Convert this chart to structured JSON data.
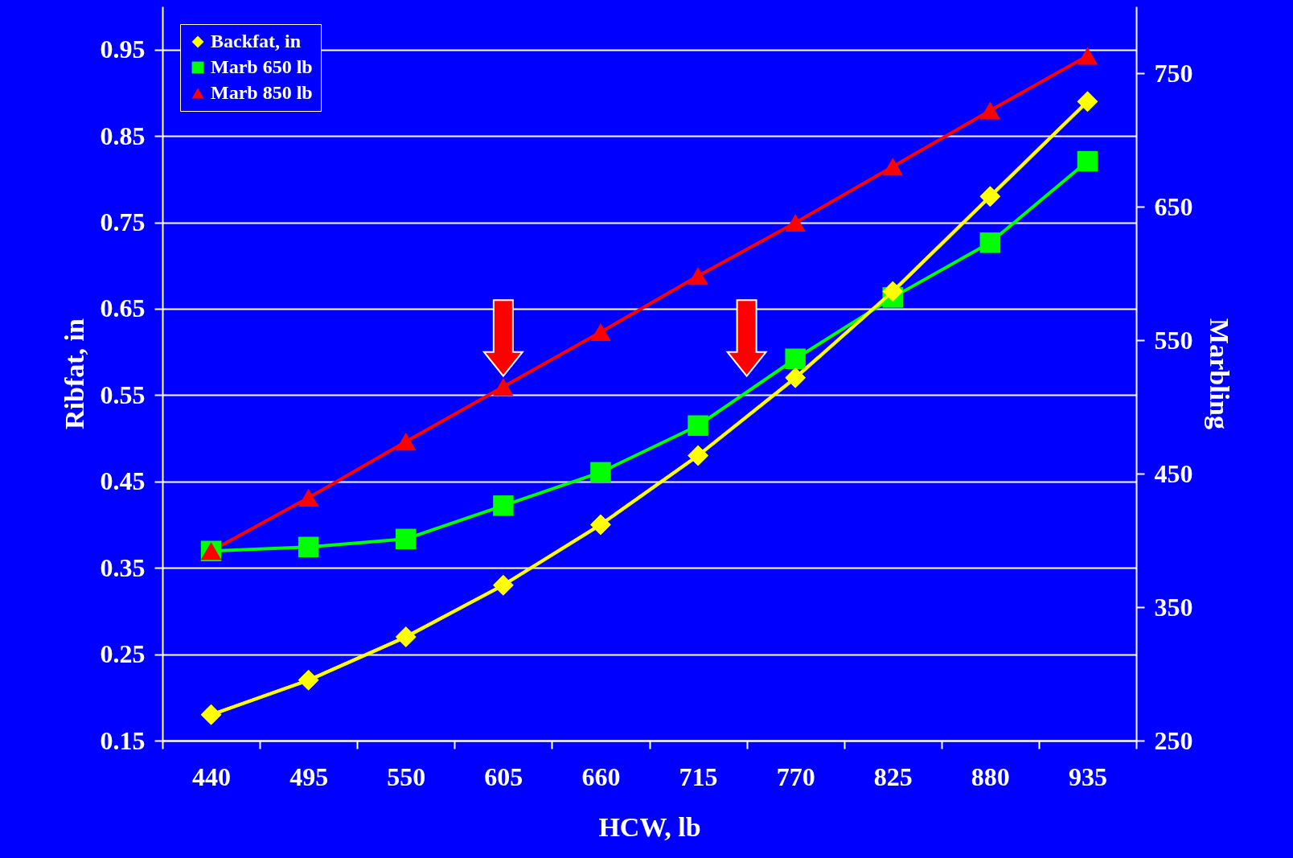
{
  "chart_data": {
    "type": "line",
    "xlabel": "HCW, lb",
    "ylabel": "Ribfat, in",
    "y2label": "Marbling",
    "categories": [
      "440",
      "495",
      "550",
      "605",
      "660",
      "715",
      "770",
      "825",
      "880",
      "935"
    ],
    "series": [
      {
        "name": "Backfat, in",
        "color": "#ffff00",
        "marker": "diamond",
        "values": [
          0.18,
          0.22,
          0.27,
          0.33,
          0.4,
          0.48,
          0.57,
          0.67,
          0.78,
          0.89
        ]
      },
      {
        "name": "Marb 650 lb",
        "color": "#00ff00",
        "marker": "square",
        "axis": "y2",
        "values": [
          392,
          395,
          401,
          426,
          451,
          486,
          536,
          582,
          623,
          684
        ]
      },
      {
        "name": "Marb 850 lb",
        "color": "#ff0000",
        "marker": "triangle",
        "axis": "y2",
        "values": [
          392,
          432,
          474,
          515,
          556,
          598,
          638,
          680,
          722,
          763
        ]
      }
    ],
    "ylim": [
      0.15,
      1.0
    ],
    "yticks": [
      0.15,
      0.25,
      0.35,
      0.45,
      0.55,
      0.65,
      0.75,
      0.85,
      0.95
    ],
    "y2lim": [
      250,
      800
    ],
    "y2ticks": [
      250,
      350,
      450,
      550,
      650,
      750
    ],
    "grid": "y",
    "legend": "top left"
  }
}
